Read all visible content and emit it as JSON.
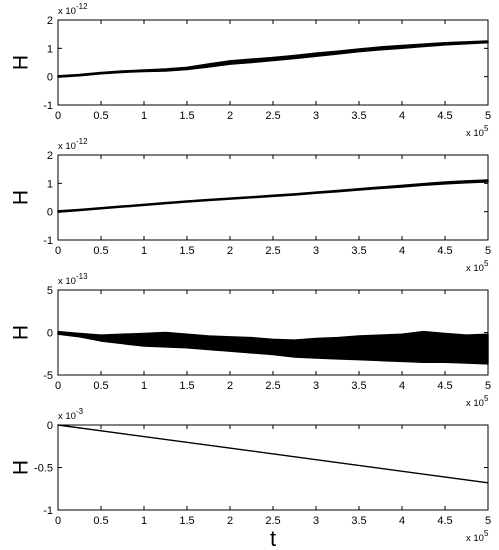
{
  "chart_data": [
    {
      "type": "line",
      "ylabel": "H",
      "xlabel": "",
      "xlim": [
        0,
        500000
      ],
      "ylim": [
        -1,
        2
      ],
      "x_ticks": [
        "0",
        "0.5",
        "1",
        "1.5",
        "2",
        "2.5",
        "3",
        "3.5",
        "4",
        "4.5",
        "5"
      ],
      "y_ticks": [
        "-1",
        "0",
        "1",
        "2"
      ],
      "x_multiplier": {
        "base": "x 10",
        "exp": "5"
      },
      "y_multiplier": {
        "base": "x 10",
        "exp": "-12"
      },
      "line_color": "#000000",
      "series": [
        {
          "x": [
            0,
            25000,
            50000,
            75000,
            100000,
            125000,
            150000,
            175000,
            200000,
            225000,
            250000,
            275000,
            300000,
            325000,
            350000,
            375000,
            400000,
            425000,
            450000,
            475000,
            500000
          ],
          "upper": [
            0.03,
            0.08,
            0.15,
            0.2,
            0.24,
            0.27,
            0.33,
            0.45,
            0.56,
            0.62,
            0.68,
            0.75,
            0.83,
            0.9,
            0.98,
            1.05,
            1.1,
            1.15,
            1.2,
            1.23,
            1.26
          ],
          "lower": [
            -0.02,
            0.03,
            0.1,
            0.15,
            0.18,
            0.2,
            0.25,
            0.34,
            0.44,
            0.5,
            0.57,
            0.64,
            0.72,
            0.8,
            0.88,
            0.95,
            1.0,
            1.06,
            1.12,
            1.16,
            1.2
          ]
        }
      ]
    },
    {
      "type": "line",
      "ylabel": "H",
      "xlabel": "",
      "xlim": [
        0,
        500000
      ],
      "ylim": [
        -1,
        2
      ],
      "x_ticks": [
        "0",
        "0.5",
        "1",
        "1.5",
        "2",
        "2.5",
        "3",
        "3.5",
        "4",
        "4.5",
        "5"
      ],
      "y_ticks": [
        "-1",
        "0",
        "1",
        "2"
      ],
      "x_multiplier": {
        "base": "x 10",
        "exp": "5"
      },
      "y_multiplier": {
        "base": "x 10",
        "exp": "-12"
      },
      "line_color": "#000000",
      "series": [
        {
          "x": [
            0,
            25000,
            50000,
            75000,
            100000,
            125000,
            150000,
            175000,
            200000,
            225000,
            250000,
            275000,
            300000,
            325000,
            350000,
            375000,
            400000,
            425000,
            450000,
            475000,
            500000
          ],
          "upper": [
            0.03,
            0.08,
            0.14,
            0.2,
            0.26,
            0.32,
            0.38,
            0.43,
            0.48,
            0.53,
            0.58,
            0.63,
            0.69,
            0.75,
            0.81,
            0.87,
            0.93,
            0.99,
            1.05,
            1.09,
            1.12
          ],
          "lower": [
            -0.02,
            0.04,
            0.1,
            0.16,
            0.22,
            0.28,
            0.34,
            0.39,
            0.44,
            0.49,
            0.54,
            0.59,
            0.65,
            0.7,
            0.76,
            0.82,
            0.87,
            0.93,
            0.98,
            1.02,
            1.05
          ]
        }
      ]
    },
    {
      "type": "line",
      "ylabel": "H",
      "xlabel": "",
      "xlim": [
        0,
        500000
      ],
      "ylim": [
        -5,
        5
      ],
      "x_ticks": [
        "0",
        "0.5",
        "1",
        "1.5",
        "2",
        "2.5",
        "3",
        "3.5",
        "4",
        "4.5",
        "5"
      ],
      "y_ticks": [
        "-5",
        "0",
        "5"
      ],
      "x_multiplier": {
        "base": "x 10",
        "exp": "5"
      },
      "y_multiplier": {
        "base": "x 10",
        "exp": "-13"
      },
      "line_color": "#000000",
      "series": [
        {
          "x": [
            0,
            25000,
            50000,
            75000,
            100000,
            125000,
            150000,
            175000,
            200000,
            225000,
            250000,
            275000,
            300000,
            325000,
            350000,
            375000,
            400000,
            425000,
            450000,
            475000,
            500000
          ],
          "upper": [
            0.1,
            -0.1,
            -0.3,
            -0.2,
            -0.1,
            0.0,
            -0.2,
            -0.4,
            -0.5,
            -0.6,
            -0.8,
            -0.9,
            -0.7,
            -0.6,
            -0.4,
            -0.3,
            -0.2,
            0.1,
            -0.1,
            -0.3,
            -0.2
          ],
          "lower": [
            -0.2,
            -0.5,
            -1.0,
            -1.3,
            -1.6,
            -1.7,
            -1.8,
            -2.0,
            -2.2,
            -2.4,
            -2.6,
            -2.9,
            -3.0,
            -3.1,
            -3.2,
            -3.3,
            -3.4,
            -3.5,
            -3.5,
            -3.6,
            -3.7
          ]
        }
      ]
    },
    {
      "type": "line",
      "ylabel": "H",
      "xlabel": "t",
      "xlim": [
        0,
        500000
      ],
      "ylim": [
        -1,
        0
      ],
      "x_ticks": [
        "0",
        "0.5",
        "1",
        "1.5",
        "2",
        "2.5",
        "3",
        "3.5",
        "4",
        "4.5",
        "5"
      ],
      "y_ticks": [
        "-1",
        "-0.5",
        "0"
      ],
      "x_multiplier": {
        "base": "x 10",
        "exp": "5"
      },
      "y_multiplier": {
        "base": "x 10",
        "exp": "-3"
      },
      "line_color": "#000000",
      "series": [
        {
          "x": [
            0,
            500000
          ],
          "upper": [
            0,
            -0.68
          ],
          "lower": [
            0,
            -0.68
          ]
        }
      ]
    }
  ]
}
